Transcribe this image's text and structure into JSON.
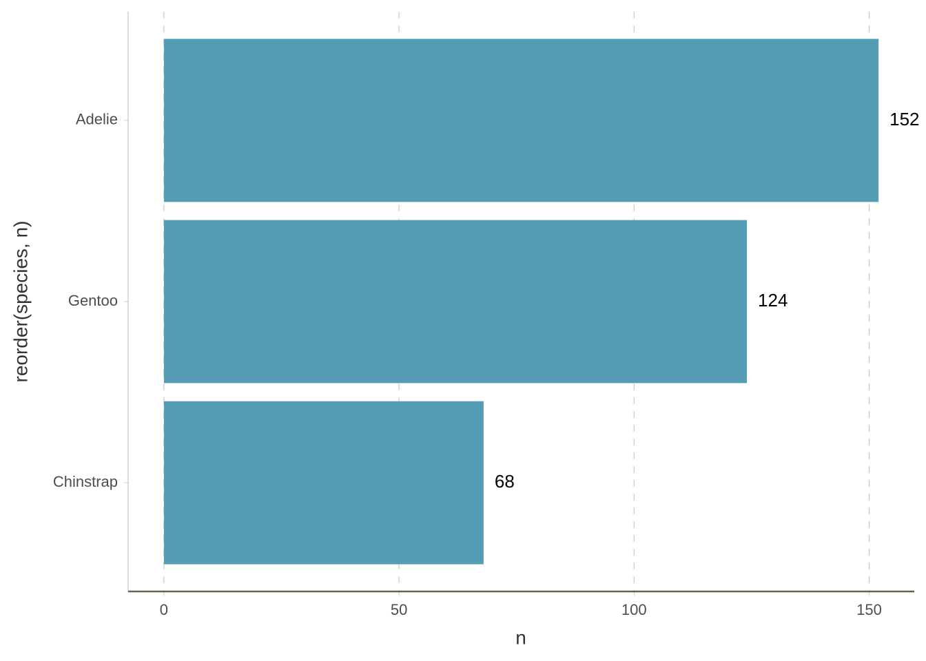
{
  "chart_data": {
    "type": "bar",
    "orientation": "horizontal",
    "x_label": "n",
    "y_label": "reorder(species, n)",
    "categories": [
      "Adelie",
      "Gentoo",
      "Chinstrap"
    ],
    "values": [
      152,
      124,
      68
    ],
    "color": "#559cb5",
    "xlim": [
      -7.6,
      159.6
    ],
    "xticks": [
      0,
      50,
      100,
      150
    ],
    "grid": true
  }
}
